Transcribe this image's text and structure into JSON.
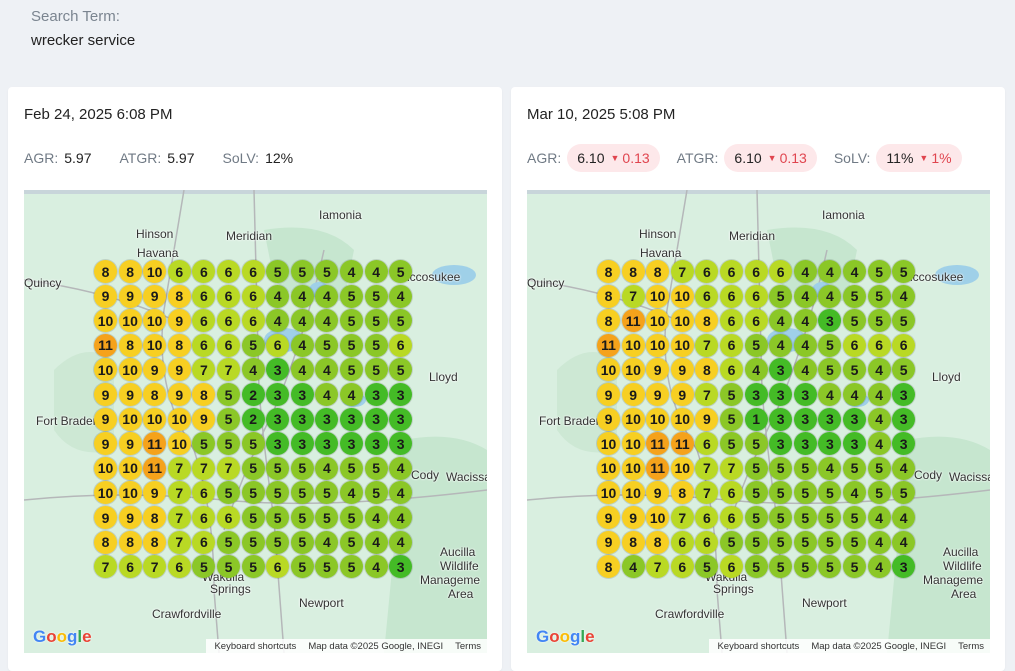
{
  "search": {
    "label": "Search Term:",
    "value": "wrecker service"
  },
  "map_labels": [
    "Iamonia",
    "Hinson",
    "Meridian",
    "Havana",
    "Quincy",
    "Miccosukee",
    "Lloyd",
    "Fort Braden",
    "Wacissa",
    "Cody",
    "Aucilla",
    "Wildlife",
    "Manageme",
    "Area",
    "Wakulla",
    "Springs",
    "Newport",
    "Crawfordville"
  ],
  "map_footer": {
    "keyboard": "Keyboard shortcuts",
    "mapdata": "Map data ©2025 Google, INEGI",
    "terms": "Terms",
    "google": [
      "G",
      "o",
      "o",
      "g",
      "l",
      "e"
    ]
  },
  "colors": {
    "orange": "#f5a21b",
    "yellow": "#f7cf22",
    "lime": "#b9d924",
    "green": "#8bc727",
    "darkgreen": "#44bb26"
  },
  "cards": [
    {
      "date": "Feb 24, 2025 6:08 PM",
      "metrics": [
        {
          "label": "AGR:",
          "value": "5.97"
        },
        {
          "label": "ATGR:",
          "value": "5.97"
        },
        {
          "label": "SoLV:",
          "value": "12%"
        }
      ],
      "grid": [
        [
          8,
          8,
          10,
          6,
          6,
          6,
          6,
          5,
          5,
          5,
          4,
          4,
          5
        ],
        [
          9,
          9,
          9,
          8,
          6,
          6,
          6,
          4,
          4,
          4,
          5,
          5,
          4
        ],
        [
          10,
          10,
          10,
          9,
          6,
          6,
          6,
          4,
          4,
          4,
          5,
          5,
          5
        ],
        [
          11,
          8,
          10,
          8,
          6,
          6,
          5,
          6,
          4,
          5,
          5,
          5,
          6
        ],
        [
          10,
          10,
          9,
          9,
          7,
          7,
          4,
          3,
          4,
          4,
          5,
          5,
          5
        ],
        [
          9,
          9,
          8,
          9,
          8,
          5,
          2,
          3,
          3,
          4,
          4,
          3,
          3
        ],
        [
          9,
          10,
          10,
          10,
          9,
          5,
          2,
          3,
          3,
          3,
          3,
          3,
          3
        ],
        [
          9,
          9,
          11,
          10,
          5,
          5,
          5,
          3,
          3,
          3,
          3,
          3,
          3
        ],
        [
          10,
          10,
          11,
          7,
          7,
          7,
          5,
          5,
          5,
          4,
          5,
          5,
          4
        ],
        [
          10,
          10,
          9,
          7,
          6,
          5,
          5,
          5,
          5,
          5,
          4,
          5,
          4
        ],
        [
          9,
          9,
          8,
          7,
          6,
          6,
          5,
          5,
          5,
          5,
          5,
          4,
          4
        ],
        [
          8,
          8,
          8,
          7,
          6,
          5,
          5,
          5,
          5,
          4,
          5,
          4,
          4
        ],
        [
          7,
          6,
          7,
          6,
          5,
          5,
          5,
          6,
          5,
          5,
          5,
          4,
          3
        ]
      ]
    },
    {
      "date": "Mar 10, 2025 5:08 PM",
      "metrics": [
        {
          "label": "AGR:",
          "value": "6.10",
          "delta": "0.13"
        },
        {
          "label": "ATGR:",
          "value": "6.10",
          "delta": "0.13"
        },
        {
          "label": "SoLV:",
          "value": "11%",
          "delta": "1%"
        }
      ],
      "grid": [
        [
          8,
          8,
          8,
          7,
          6,
          6,
          6,
          6,
          4,
          4,
          4,
          5,
          5
        ],
        [
          8,
          7,
          10,
          10,
          6,
          6,
          6,
          5,
          4,
          4,
          5,
          5,
          4
        ],
        [
          8,
          11,
          10,
          10,
          8,
          6,
          6,
          4,
          4,
          3,
          5,
          5,
          5
        ],
        [
          11,
          10,
          10,
          10,
          7,
          6,
          5,
          4,
          4,
          5,
          6,
          6,
          6
        ],
        [
          10,
          10,
          9,
          9,
          8,
          6,
          4,
          3,
          4,
          5,
          5,
          4,
          5
        ],
        [
          9,
          9,
          9,
          9,
          7,
          5,
          3,
          3,
          3,
          4,
          4,
          4,
          3
        ],
        [
          9,
          10,
          10,
          10,
          9,
          5,
          1,
          3,
          3,
          3,
          3,
          4,
          3
        ],
        [
          10,
          10,
          11,
          11,
          6,
          5,
          5,
          3,
          3,
          3,
          3,
          4,
          3
        ],
        [
          10,
          10,
          11,
          10,
          7,
          7,
          5,
          5,
          5,
          4,
          5,
          5,
          4
        ],
        [
          10,
          10,
          9,
          8,
          7,
          6,
          5,
          5,
          5,
          5,
          4,
          5,
          5
        ],
        [
          9,
          9,
          10,
          7,
          6,
          6,
          5,
          5,
          5,
          5,
          5,
          4,
          4
        ],
        [
          9,
          8,
          8,
          6,
          6,
          5,
          5,
          5,
          5,
          5,
          5,
          4,
          4
        ],
        [
          8,
          4,
          7,
          6,
          5,
          6,
          5,
          5,
          5,
          5,
          5,
          4,
          3
        ]
      ]
    }
  ]
}
